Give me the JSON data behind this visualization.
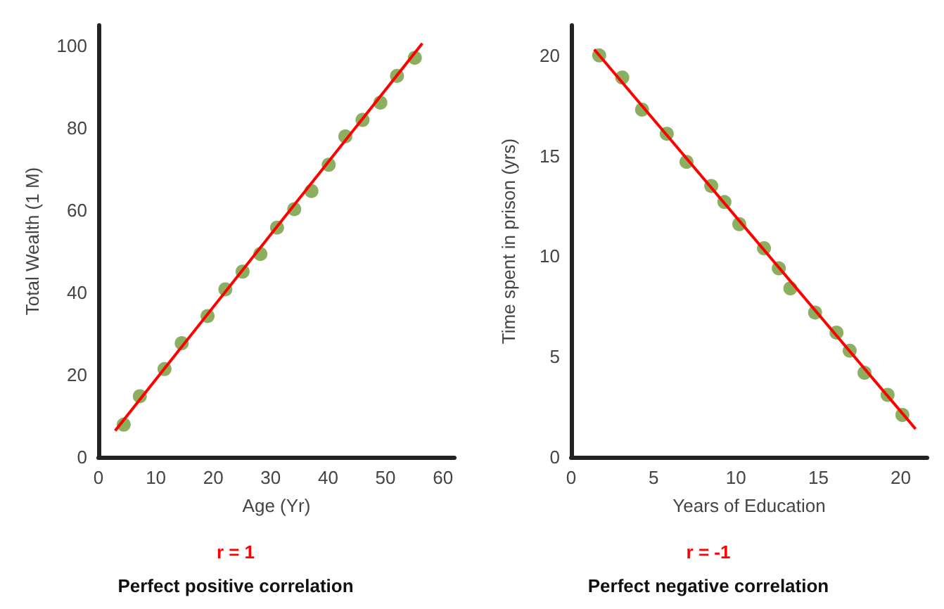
{
  "chart_data": [
    {
      "type": "scatter",
      "xlabel": "Age (Yr)",
      "ylabel": "Total Wealth (1 M)",
      "xlim": [
        0,
        62
      ],
      "ylim": [
        0,
        105
      ],
      "xticks": [
        0,
        10,
        20,
        30,
        40,
        50,
        60
      ],
      "yticks": [
        0,
        20,
        40,
        60,
        80,
        100
      ],
      "grid": false,
      "annotations": [
        "r = 1",
        "Perfect positive correlation"
      ],
      "series": [
        {
          "color": "#6e9a3a",
          "marker": "circle",
          "x": [
            4.4,
            7.2,
            11.5,
            14.5,
            19.0,
            22.1,
            25.1,
            28.2,
            31.1,
            34.1,
            37.1,
            40.1,
            43.0,
            46.0,
            49.1,
            52.0,
            55.1
          ],
          "values": [
            7.9,
            14.8,
            21.4,
            27.7,
            34.3,
            40.8,
            45.1,
            49.4,
            55.8,
            60.3,
            64.7,
            71.1,
            78.0,
            82.0,
            86.2,
            92.7,
            97.1
          ]
        },
        {
          "type": "line",
          "color": "#ff0000",
          "marker": "none",
          "x": [
            2.9,
            56.4
          ],
          "values": [
            6.4,
            100.6
          ]
        }
      ]
    },
    {
      "type": "scatter",
      "xlabel": "Years of Education",
      "ylabel": "Time spent in prison (yrs)",
      "xlim": [
        0,
        21.6
      ],
      "ylim": [
        0,
        21.5
      ],
      "xticks": [
        0,
        5,
        10,
        15,
        20
      ],
      "yticks": [
        0,
        5,
        10,
        15,
        20
      ],
      "grid": false,
      "annotations": [
        "r = -1",
        "Perfect negative correlation"
      ],
      "series": [
        {
          "color": "#6e9a3a",
          "marker": "circle",
          "x": [
            1.7,
            3.1,
            4.3,
            5.8,
            7.0,
            8.5,
            9.3,
            10.2,
            11.7,
            12.6,
            13.3,
            14.8,
            16.1,
            16.9,
            17.8,
            19.2,
            20.1
          ],
          "values": [
            20.0,
            18.9,
            17.3,
            16.1,
            14.7,
            13.5,
            12.7,
            11.6,
            10.4,
            9.4,
            8.4,
            7.2,
            6.2,
            5.3,
            4.2,
            3.1,
            2.1
          ]
        },
        {
          "type": "line",
          "color": "#ff0000",
          "marker": "none",
          "x": [
            1.4,
            20.9
          ],
          "values": [
            20.3,
            1.4
          ]
        }
      ]
    }
  ]
}
